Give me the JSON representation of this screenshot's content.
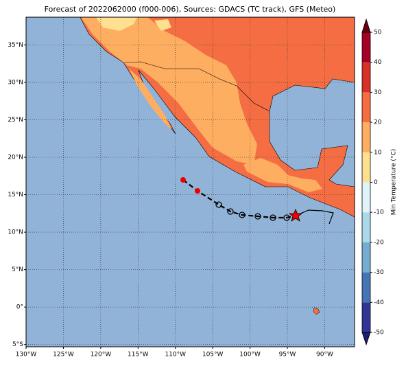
{
  "chart_data": {
    "type": "map",
    "title": "Forecast of 2022062000 (f000-006), Sources: GDACS (TC track), GFS (Meteo)",
    "xlim": [
      -130,
      -86
    ],
    "ylim": [
      -5.3,
      38.7
    ],
    "xticks": [
      {
        "value": -130,
        "label": "130°W"
      },
      {
        "value": -125,
        "label": "125°W"
      },
      {
        "value": -120,
        "label": "120°W"
      },
      {
        "value": -115,
        "label": "115°W"
      },
      {
        "value": -110,
        "label": "110°W"
      },
      {
        "value": -105,
        "label": "105°W"
      },
      {
        "value": -100,
        "label": "100°W"
      },
      {
        "value": -95,
        "label": "95°W"
      },
      {
        "value": -90,
        "label": "90°W"
      }
    ],
    "yticks": [
      {
        "value": -5,
        "label": "5°S"
      },
      {
        "value": 0,
        "label": "0°"
      },
      {
        "value": 5,
        "label": "5°N"
      },
      {
        "value": 10,
        "label": "10°N"
      },
      {
        "value": 15,
        "label": "15°N"
      },
      {
        "value": 20,
        "label": "20°N"
      },
      {
        "value": 25,
        "label": "25°N"
      },
      {
        "value": 30,
        "label": "30°N"
      },
      {
        "value": 35,
        "label": "35°N"
      }
    ],
    "grid": true,
    "colorbar": {
      "label": "Min Temperature (°C)",
      "lim": [
        -50,
        50
      ],
      "ticks": [
        -50,
        -40,
        -30,
        -20,
        -10,
        0,
        10,
        20,
        30,
        40,
        50
      ],
      "colors": [
        "#313695",
        "#4575b4",
        "#74add1",
        "#abd9e9",
        "#e0f3f8",
        "#fee090",
        "#fdae61",
        "#f46d43",
        "#d73027",
        "#a50026"
      ],
      "under_color": "#1c1c70",
      "over_color": "#67000d"
    }
  }
}
